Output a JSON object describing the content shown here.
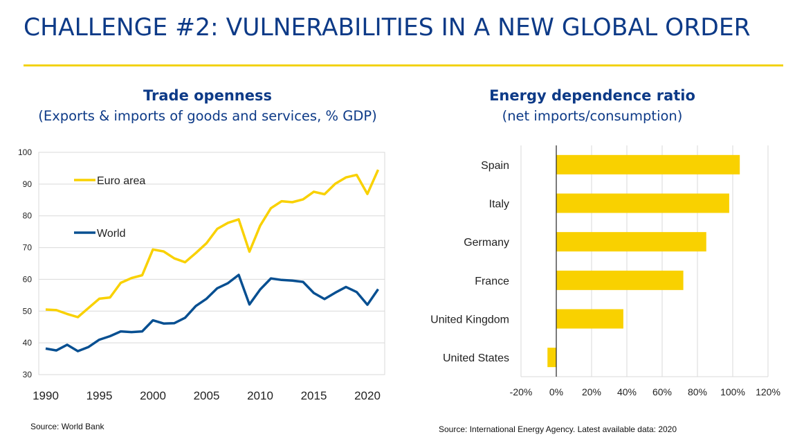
{
  "title": "CHALLENGE #2: VULNERABILITIES IN A NEW GLOBAL ORDER",
  "colors": {
    "title_blue": "#0d3a87",
    "euro_yellow": "#f9d100",
    "world_blue": "#074f91",
    "rule_yellow": "#f2d214",
    "grid": "#d9d9d9"
  },
  "left_chart": {
    "title": "Trade openness",
    "subtitle": "(Exports & imports of goods and services, % GDP)",
    "source": "Source: World Bank"
  },
  "right_chart": {
    "title": "Energy dependence ratio",
    "subtitle": "(net imports/consumption)",
    "source": "Source: International Energy Agency. Latest available data: 2020"
  },
  "chart_data": [
    {
      "type": "line",
      "title": "Trade openness",
      "subtitle": "(Exports & imports of goods and services, % GDP)",
      "x": [
        1990,
        1991,
        1992,
        1993,
        1994,
        1995,
        1996,
        1997,
        1998,
        1999,
        2000,
        2001,
        2002,
        2003,
        2004,
        2005,
        2006,
        2007,
        2008,
        2009,
        2010,
        2011,
        2012,
        2013,
        2014,
        2015,
        2016,
        2017,
        2018,
        2019,
        2020,
        2021
      ],
      "series": [
        {
          "name": "Euro area",
          "color": "#f9d100",
          "values": [
            50.5,
            50.3,
            49.1,
            48.1,
            51.0,
            53.9,
            54.3,
            58.9,
            60.4,
            61.3,
            69.4,
            68.8,
            66.6,
            65.4,
            68.3,
            71.4,
            75.9,
            77.8,
            78.9,
            68.7,
            76.9,
            82.4,
            84.6,
            84.3,
            85.2,
            87.6,
            86.8,
            90.1,
            92.1,
            92.9,
            86.9,
            94.5
          ]
        },
        {
          "name": "World",
          "color": "#074f91",
          "values": [
            38.2,
            37.6,
            39.4,
            37.4,
            38.7,
            41.0,
            42.1,
            43.6,
            43.4,
            43.6,
            47.1,
            46.1,
            46.2,
            47.9,
            51.6,
            53.9,
            57.2,
            58.8,
            61.4,
            52.1,
            56.8,
            60.3,
            59.8,
            59.6,
            59.2,
            55.7,
            53.8,
            55.8,
            57.6,
            56.0,
            52.0,
            56.9
          ]
        }
      ],
      "ylim": [
        30,
        100
      ],
      "yticks": [
        30,
        40,
        50,
        60,
        70,
        80,
        90,
        100
      ],
      "xticks": [
        1990,
        1995,
        2000,
        2005,
        2010,
        2015,
        2020
      ],
      "legend": "inside-top-left",
      "grid": true
    },
    {
      "type": "bar",
      "orientation": "horizontal",
      "title": "Energy dependence ratio",
      "subtitle": "(net imports/consumption)",
      "categories": [
        "Spain",
        "Italy",
        "Germany",
        "France",
        "United Kingdom",
        "United States"
      ],
      "values": [
        104,
        98,
        85,
        72,
        38,
        -5
      ],
      "unit": "%",
      "xlim": [
        -20,
        120
      ],
      "xticks": [
        -20,
        0,
        20,
        40,
        60,
        80,
        100,
        120
      ],
      "xtick_labels": [
        "-20%",
        "0%",
        "20%",
        "40%",
        "60%",
        "80%",
        "100%",
        "120%"
      ],
      "grid": true
    }
  ]
}
